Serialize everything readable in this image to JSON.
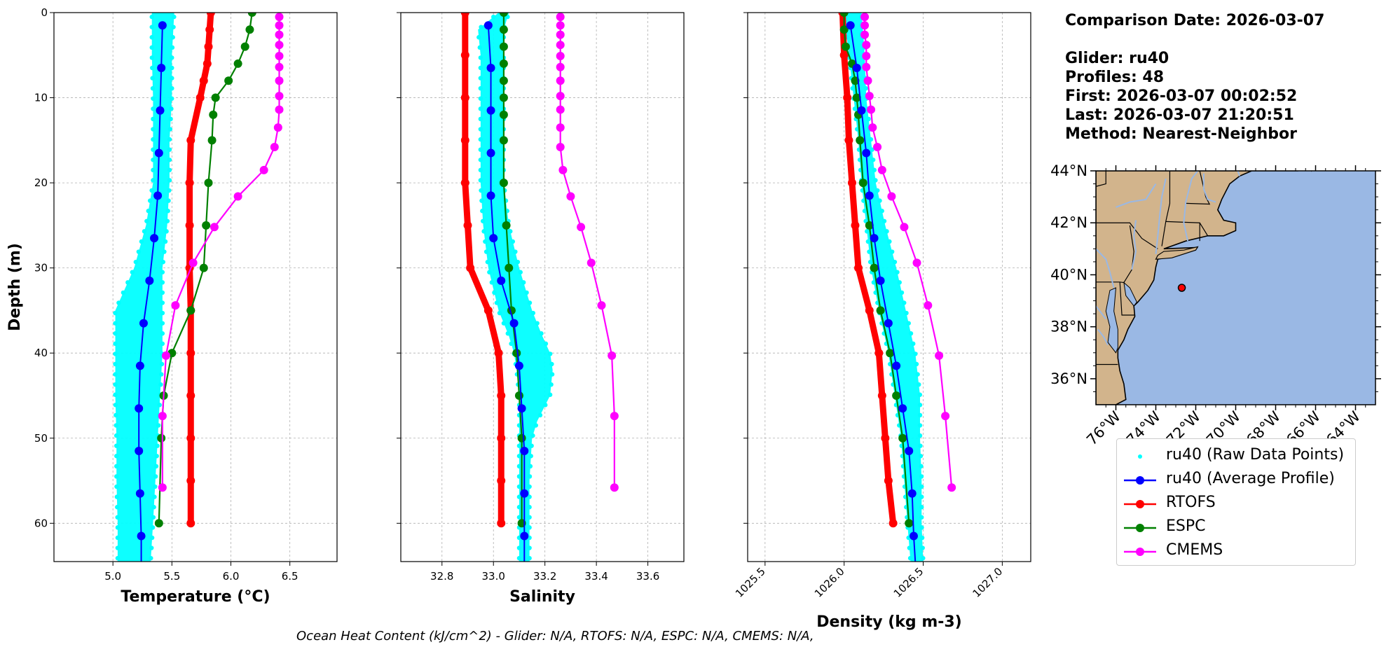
{
  "info": {
    "date_line": "Comparison Date: 2026-03-07",
    "glider_line": "Glider: ru40",
    "profiles_line": "Profiles: 48",
    "first_line": "First: 2026-03-07 00:02:52",
    "last_line": "Last: 2026-03-07 21:20:51",
    "method_line": "Method: Nearest-Neighbor"
  },
  "footer": "Ocean Heat Content (kJ/cm^2) - Glider: N/A,  RTOFS: N/A,  ESPC: N/A,  CMEMS: N/A,",
  "colors": {
    "raw": "#00ffff",
    "average": "#0000ff",
    "rtofs": "#ff0000",
    "espc": "#008000",
    "cmems": "#ff00ff",
    "land": "#d2b48c",
    "ocean": "#9ab8e4",
    "grid": "#b0b0b0"
  },
  "legend": [
    {
      "label": "ru40 (Raw Data Points)",
      "color": "#00ffff",
      "style": "dots"
    },
    {
      "label": "ru40 (Average Profile)",
      "color": "#0000ff",
      "style": "line-marker"
    },
    {
      "label": "RTOFS",
      "color": "#ff0000",
      "style": "line-marker"
    },
    {
      "label": "ESPC",
      "color": "#008000",
      "style": "line-marker"
    },
    {
      "label": "CMEMS",
      "color": "#ff00ff",
      "style": "line-marker"
    }
  ],
  "map": {
    "lat_labels": [
      "44°N",
      "42°N",
      "40°N",
      "38°N",
      "36°N"
    ],
    "lat_values": [
      44,
      42,
      40,
      38,
      36
    ],
    "lon_labels": [
      "76°W",
      "74°W",
      "72°W",
      "70°W",
      "68°W",
      "66°W",
      "64°W"
    ],
    "lon_values": [
      -76,
      -74,
      -72,
      -70,
      -68,
      -66,
      -64
    ],
    "extent": {
      "lon": [
        -77,
        -63
      ],
      "lat": [
        35,
        44
      ]
    },
    "glider_position": {
      "lon": -72.7,
      "lat": 39.5
    }
  },
  "chart_data": [
    {
      "type": "line",
      "xlabel": "Temperature (°C)",
      "ylabel": "Depth (m)",
      "xlim": [
        4.5,
        6.9
      ],
      "ylim": [
        64.5,
        0
      ],
      "xticks": [
        5.0,
        5.5,
        6.0,
        6.5
      ],
      "xtick_labels": [
        "5.0",
        "5.5",
        "6.0",
        "6.5"
      ],
      "yticks": [
        0,
        10,
        20,
        30,
        40,
        50,
        60
      ],
      "ytick_labels": [
        "0",
        "10",
        "20",
        "30",
        "40",
        "50",
        "60"
      ],
      "grid": true,
      "raw_band": {
        "depth": [
          0,
          5,
          10,
          15,
          20,
          25,
          30,
          35,
          40,
          45,
          50,
          55,
          60,
          64.5
        ],
        "min": [
          5.33,
          5.33,
          5.34,
          5.34,
          5.34,
          5.28,
          5.18,
          5.02,
          5.02,
          5.02,
          5.03,
          5.03,
          5.04,
          5.04
        ],
        "max": [
          5.52,
          5.5,
          5.5,
          5.48,
          5.48,
          5.46,
          5.42,
          5.42,
          5.42,
          5.4,
          5.38,
          5.36,
          5.34,
          5.32
        ]
      },
      "series": [
        {
          "name": "ru40 (Average Profile)",
          "depth": [
            1.5,
            6.5,
            11.5,
            16.5,
            21.5,
            26.5,
            31.5,
            36.5,
            41.5,
            46.5,
            51.5,
            56.5,
            61.5,
            64.5
          ],
          "values": [
            5.42,
            5.41,
            5.4,
            5.39,
            5.38,
            5.35,
            5.31,
            5.26,
            5.23,
            5.22,
            5.22,
            5.23,
            5.24,
            5.24
          ]
        },
        {
          "name": "RTOFS",
          "depth": [
            0,
            2,
            4,
            6,
            8,
            10,
            15,
            20,
            25,
            30,
            35,
            40,
            45,
            50,
            55,
            60
          ],
          "values": [
            5.83,
            5.82,
            5.81,
            5.8,
            5.77,
            5.74,
            5.66,
            5.65,
            5.65,
            5.65,
            5.66,
            5.66,
            5.66,
            5.66,
            5.66,
            5.66
          ]
        },
        {
          "name": "ESPC",
          "depth": [
            0,
            2,
            4,
            6,
            8,
            10,
            12,
            15,
            20,
            25,
            30,
            35,
            40,
            45,
            50,
            60
          ],
          "values": [
            6.18,
            6.16,
            6.12,
            6.06,
            5.98,
            5.87,
            5.85,
            5.84,
            5.81,
            5.79,
            5.77,
            5.66,
            5.5,
            5.43,
            5.41,
            5.39
          ]
        },
        {
          "name": "CMEMS",
          "depth": [
            0.5,
            1.5,
            2.6,
            3.8,
            5.1,
            6.4,
            8.0,
            9.8,
            11.4,
            13.5,
            15.8,
            18.5,
            21.6,
            25.2,
            29.4,
            34.4,
            40.3,
            47.4,
            55.8
          ],
          "values": [
            6.41,
            6.41,
            6.41,
            6.41,
            6.41,
            6.41,
            6.41,
            6.41,
            6.41,
            6.4,
            6.37,
            6.28,
            6.06,
            5.86,
            5.68,
            5.53,
            5.45,
            5.42,
            5.42
          ]
        }
      ]
    },
    {
      "type": "line",
      "xlabel": "Salinity",
      "xlim": [
        32.64,
        33.74
      ],
      "ylim": [
        64.5,
        0
      ],
      "xticks": [
        32.8,
        33.0,
        33.2,
        33.4,
        33.6
      ],
      "xtick_labels": [
        "32.8",
        "33.0",
        "33.2",
        "33.4",
        "33.6"
      ],
      "yticks": [
        0,
        10,
        20,
        30,
        40,
        50,
        60
      ],
      "grid": true,
      "raw_band": {
        "depth": [
          0,
          2,
          5,
          10,
          15,
          20,
          25,
          30,
          35,
          38,
          40,
          42,
          45,
          48,
          50,
          55,
          60,
          64.5
        ],
        "min": [
          33.02,
          32.94,
          32.95,
          32.95,
          32.95,
          32.95,
          32.96,
          32.98,
          33.02,
          33.06,
          33.08,
          33.09,
          33.1,
          33.1,
          33.1,
          33.1,
          33.1,
          33.1
        ],
        "max": [
          33.06,
          33.04,
          33.04,
          33.04,
          33.04,
          33.04,
          33.06,
          33.1,
          33.15,
          33.19,
          33.22,
          33.23,
          33.22,
          33.17,
          33.15,
          33.14,
          33.14,
          33.14
        ]
      },
      "series": [
        {
          "name": "ru40 (Average Profile)",
          "depth": [
            1.5,
            6.5,
            11.5,
            16.5,
            21.5,
            26.5,
            31.5,
            36.5,
            41.5,
            46.5,
            51.5,
            56.5,
            61.5,
            64.5
          ],
          "values": [
            32.98,
            32.99,
            32.99,
            32.99,
            32.99,
            33.0,
            33.03,
            33.08,
            33.1,
            33.11,
            33.12,
            33.12,
            33.12,
            33.12
          ]
        },
        {
          "name": "RTOFS",
          "depth": [
            0,
            5,
            10,
            15,
            20,
            25,
            30,
            35,
            40,
            45,
            50,
            55,
            60
          ],
          "values": [
            32.89,
            32.89,
            32.89,
            32.89,
            32.89,
            32.9,
            32.91,
            32.98,
            33.02,
            33.03,
            33.03,
            33.03,
            33.03
          ]
        },
        {
          "name": "ESPC",
          "depth": [
            0,
            2,
            4,
            6,
            8,
            10,
            12,
            15,
            20,
            25,
            30,
            35,
            40,
            45,
            50,
            60
          ],
          "values": [
            33.04,
            33.04,
            33.04,
            33.04,
            33.04,
            33.04,
            33.04,
            33.04,
            33.04,
            33.05,
            33.06,
            33.07,
            33.09,
            33.1,
            33.11,
            33.11
          ]
        },
        {
          "name": "CMEMS",
          "depth": [
            0.5,
            1.5,
            2.6,
            3.8,
            5.1,
            6.4,
            8.0,
            9.8,
            11.4,
            13.5,
            15.8,
            18.5,
            21.6,
            25.2,
            29.4,
            34.4,
            40.3,
            47.4,
            55.8
          ],
          "values": [
            33.26,
            33.26,
            33.26,
            33.26,
            33.26,
            33.26,
            33.26,
            33.26,
            33.26,
            33.26,
            33.26,
            33.27,
            33.3,
            33.34,
            33.38,
            33.42,
            33.46,
            33.47,
            33.47
          ]
        }
      ]
    },
    {
      "type": "line",
      "xlabel": "Density (kg m-3)",
      "xlim": [
        1025.39,
        1027.18
      ],
      "ylim": [
        64.5,
        0
      ],
      "xticks": [
        1025.5,
        1026.0,
        1026.5,
        1027.0
      ],
      "xtick_labels": [
        "1025.5",
        "1026.0",
        "1026.5",
        "1027.0"
      ],
      "yticks": [
        0,
        10,
        20,
        30,
        40,
        50,
        60
      ],
      "grid": true,
      "raw_band": {
        "depth": [
          0,
          5,
          10,
          15,
          20,
          25,
          30,
          35,
          40,
          45,
          50,
          55,
          60,
          64.5
        ],
        "min": [
          1026.0,
          1026.03,
          1026.06,
          1026.09,
          1026.11,
          1026.14,
          1026.17,
          1026.22,
          1026.28,
          1026.32,
          1026.36,
          1026.38,
          1026.4,
          1026.42
        ],
        "max": [
          1026.11,
          1026.13,
          1026.14,
          1026.17,
          1026.2,
          1026.26,
          1026.33,
          1026.39,
          1026.45,
          1026.48,
          1026.48,
          1026.49,
          1026.49,
          1026.5
        ]
      },
      "series": [
        {
          "name": "ru40 (Average Profile)",
          "depth": [
            1.5,
            6.5,
            11.5,
            16.5,
            21.5,
            26.5,
            31.5,
            36.5,
            41.5,
            46.5,
            51.5,
            56.5,
            61.5,
            64.5
          ],
          "values": [
            1026.04,
            1026.08,
            1026.11,
            1026.14,
            1026.16,
            1026.19,
            1026.23,
            1026.28,
            1026.33,
            1026.37,
            1026.41,
            1026.43,
            1026.44,
            1026.45
          ]
        },
        {
          "name": "RTOFS",
          "depth": [
            0,
            5,
            10,
            15,
            20,
            25,
            30,
            35,
            40,
            45,
            50,
            55,
            60
          ],
          "values": [
            1025.99,
            1026.0,
            1026.02,
            1026.03,
            1026.05,
            1026.07,
            1026.09,
            1026.16,
            1026.22,
            1026.24,
            1026.26,
            1026.28,
            1026.31
          ]
        },
        {
          "name": "ESPC",
          "depth": [
            0,
            2,
            4,
            6,
            8,
            10,
            12,
            15,
            20,
            25,
            30,
            35,
            40,
            45,
            50,
            60
          ],
          "values": [
            1026.0,
            1026.0,
            1026.01,
            1026.05,
            1026.07,
            1026.08,
            1026.09,
            1026.1,
            1026.12,
            1026.16,
            1026.19,
            1026.23,
            1026.29,
            1026.33,
            1026.37,
            1026.41
          ]
        },
        {
          "name": "CMEMS",
          "depth": [
            0.5,
            1.5,
            2.6,
            3.8,
            5.1,
            6.4,
            8.0,
            9.8,
            11.4,
            13.5,
            15.8,
            18.5,
            21.6,
            25.2,
            29.4,
            34.4,
            40.3,
            47.4,
            55.8
          ],
          "values": [
            1026.13,
            1026.13,
            1026.13,
            1026.14,
            1026.14,
            1026.14,
            1026.15,
            1026.16,
            1026.17,
            1026.18,
            1026.21,
            1026.24,
            1026.3,
            1026.38,
            1026.46,
            1026.53,
            1026.6,
            1026.64,
            1026.68
          ]
        }
      ]
    }
  ]
}
